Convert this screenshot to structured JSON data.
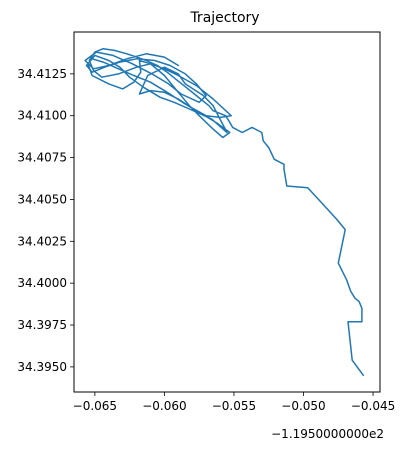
{
  "chart_data": {
    "type": "line",
    "title": "Trajectory",
    "xlabel": "",
    "ylabel": "",
    "x_offset_text": "−1.1950000000e2",
    "xlim": [
      -0.0665,
      -0.0445
    ],
    "ylim": [
      34.3935,
      34.415
    ],
    "x_ticks": [
      -0.065,
      -0.06,
      -0.055,
      -0.05,
      -0.045
    ],
    "x_tick_labels": [
      "−0.065",
      "−0.060",
      "−0.055",
      "−0.050",
      "−0.045"
    ],
    "y_ticks": [
      34.395,
      34.3975,
      34.4,
      34.4025,
      34.405,
      34.4075,
      34.41,
      34.4125
    ],
    "y_tick_labels": [
      "34.3950",
      "34.3975",
      "34.4000",
      "34.4025",
      "34.4050",
      "34.4075",
      "34.4100",
      "34.4125"
    ],
    "grid": false,
    "line_color": "#1f77b4",
    "series": [
      {
        "x": [
          -0.0457,
          -0.0465,
          -0.0468,
          -0.0458,
          -0.0458,
          -0.046,
          -0.0463,
          -0.0466,
          -0.0469,
          -0.0475,
          -0.047,
          -0.0476,
          -0.0487,
          -0.0497,
          -0.0512,
          -0.0514,
          -0.0514,
          -0.0521,
          -0.0525,
          -0.0529,
          -0.053,
          -0.0537,
          -0.0544,
          -0.0551,
          -0.0553,
          -0.0556,
          -0.0565,
          -0.0568,
          -0.0574,
          -0.0586,
          -0.0592,
          -0.0598,
          -0.0605,
          -0.0613,
          -0.062,
          -0.0627,
          -0.0636,
          -0.0644,
          -0.065,
          -0.0654,
          -0.0651,
          -0.0645,
          -0.0633,
          -0.062,
          -0.061,
          -0.06,
          -0.059,
          -0.0577,
          -0.0565,
          -0.0552,
          -0.056,
          -0.057,
          -0.0581,
          -0.059,
          -0.06,
          -0.061,
          -0.0618,
          -0.0612,
          -0.06,
          -0.059,
          -0.0585,
          -0.0572,
          -0.0565,
          -0.056,
          -0.0555,
          -0.0566,
          -0.0582,
          -0.0593,
          -0.0603,
          -0.0615,
          -0.0625,
          -0.0632,
          -0.064,
          -0.065,
          -0.0655,
          -0.0652,
          -0.064,
          -0.063,
          -0.0622,
          -0.0617,
          -0.0618,
          -0.061,
          -0.06,
          -0.059,
          -0.0582,
          -0.0575,
          -0.0565,
          -0.0558,
          -0.0553,
          -0.0563,
          -0.0575,
          -0.0587,
          -0.0598,
          -0.061,
          -0.0622,
          -0.0633,
          -0.0644,
          -0.0652,
          -0.0656,
          -0.0652,
          -0.0643,
          -0.0632,
          -0.062,
          -0.0607,
          -0.0596,
          -0.0585,
          -0.0577,
          -0.057,
          -0.0575,
          -0.0588,
          -0.0597,
          -0.0609,
          -0.0623,
          -0.0637,
          -0.0649,
          -0.0657,
          -0.0651,
          -0.064,
          -0.0627,
          -0.0613,
          -0.06,
          -0.059
        ],
        "y": [
          34.3945,
          34.3954,
          34.3977,
          34.3977,
          34.3985,
          34.3989,
          34.3991,
          34.3995,
          34.4002,
          34.4012,
          34.4032,
          34.4038,
          34.4048,
          34.4057,
          34.4058,
          34.4068,
          34.4071,
          34.4074,
          34.4081,
          34.4085,
          34.409,
          34.4093,
          34.409,
          34.4093,
          34.4096,
          34.41,
          34.4103,
          34.4106,
          34.411,
          34.4118,
          34.4122,
          34.4126,
          34.413,
          34.4133,
          34.4135,
          34.4137,
          34.4139,
          34.414,
          34.4138,
          34.4133,
          34.4127,
          34.4123,
          34.4125,
          34.4129,
          34.4131,
          34.4128,
          34.4124,
          34.4118,
          34.411,
          34.41,
          34.4099,
          34.41,
          34.4105,
          34.411,
          34.4114,
          34.4115,
          34.4113,
          34.4124,
          34.4129,
          34.4125,
          34.4119,
          34.4112,
          34.4106,
          34.4098,
          34.409,
          34.4098,
          34.4104,
          34.4108,
          34.4111,
          34.4117,
          34.4123,
          34.4129,
          34.4133,
          34.4136,
          34.4131,
          34.4124,
          34.4119,
          34.4116,
          34.412,
          34.4126,
          34.4133,
          34.4131,
          34.4124,
          34.4114,
          34.4106,
          34.41,
          34.4092,
          34.4087,
          34.409,
          34.4096,
          34.4102,
          34.4108,
          34.4114,
          34.412,
          34.4124,
          34.4128,
          34.4132,
          34.4134,
          34.413,
          34.4126,
          34.4129,
          34.4132,
          34.4134,
          34.4133,
          34.413,
          34.4125,
          34.4119,
          34.4112,
          34.4108,
          34.4113,
          34.4119,
          34.4125,
          34.4131,
          34.4136,
          34.4138,
          34.4133,
          34.4128,
          34.413,
          34.4134,
          34.4137,
          34.4135,
          34.413
        ]
      }
    ]
  }
}
